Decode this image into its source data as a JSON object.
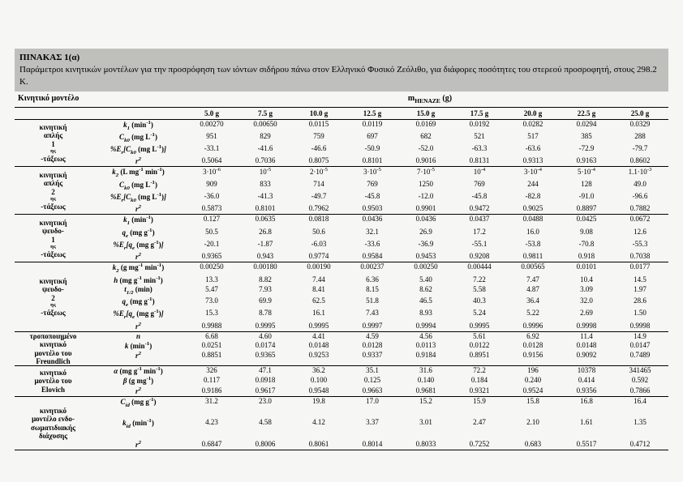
{
  "titleBox": {
    "heading": "ΠΙΝΑΚΑΣ 1(α)",
    "caption": "Παράμετροι κινητικών μοντέλων για την προσρόφηση των ιόντων σιδήρου πάνω στον Ελληνικό Φυσικό Ζεόλιθο, για διάφορες ποσότητες του στερεού προσροφητή, στους 298.2 K."
  },
  "header": {
    "leftLabel": "Κινητικό μοντέλο",
    "rightLabelHtml": "m<sub>HENAZE</sub> (g)",
    "masses": [
      "5.0 g",
      "7.5 g",
      "10.0 g",
      "12.5 g",
      "15.0 g",
      "17.5 g",
      "20.0 g",
      "22.5 g",
      "25.0 g"
    ]
  },
  "groups": [
    {
      "labelHtml": "κινητική<br>απλής<br>1<sup>ης</sup>-τάξεως",
      "rows": [
        {
          "paramHtml": "k<sub>1</sub> <span class='upright'>(min<sup>-1</sup>)</span>",
          "vals": [
            "0.00270",
            "0.00650",
            "0.0115",
            "0.0119",
            "0.0169",
            "0.0192",
            "0.0282",
            "0.0294",
            "0.0329"
          ]
        },
        {
          "paramHtml": "C<sub>k0</sub> <span class='upright'>(mg L<sup>-1</sup>)</span>",
          "vals": [
            "951",
            "829",
            "759",
            "697",
            "682",
            "521",
            "517",
            "385",
            "288"
          ]
        },
        {
          "paramHtml": "%E<sub>r</sub>[C<sub>k0</sub> <span class='upright'>(mg L<sup>-1</sup>)</span>]",
          "vals": [
            "-33.1",
            "-41.6",
            "-46.6",
            "-50.9",
            "-52.0",
            "-63.3",
            "-63.6",
            "-72.9",
            "-79.7"
          ]
        },
        {
          "paramHtml": "r<sup>2</sup>",
          "vals": [
            "0.5064",
            "0.7036",
            "0.8075",
            "0.8101",
            "0.9016",
            "0.8131",
            "0.9313",
            "0.9163",
            "0.8602"
          ]
        }
      ]
    },
    {
      "labelHtml": "κινητική<br>απλής<br>2<sup>ης</sup>-τάξεως",
      "rows": [
        {
          "paramHtml": "k<sub>2</sub> <span class='upright'>(L mg<sup>-1</sup> min<sup>-1</sup>)</span>",
          "vals": [
            "3·10<sup>-6</sup>",
            "10<sup>-5</sup>",
            "2·10<sup>-5</sup>",
            "3·10<sup>-5</sup>",
            "7·10<sup>-5</sup>",
            "10<sup>-4</sup>",
            "3·10<sup>-4</sup>",
            "5·10<sup>-4</sup>",
            "1.1·10<sup>-3</sup>"
          ]
        },
        {
          "paramHtml": "C<sub>k0</sub> <span class='upright'>(mg L<sup>-1</sup>)</span>",
          "vals": [
            "909",
            "833",
            "714",
            "769",
            "1250",
            "769",
            "244",
            "128",
            "49.0"
          ]
        },
        {
          "paramHtml": "%E<sub>r</sub>[C<sub>k0</sub> <span class='upright'>(mg L<sup>-1</sup>)</span>]",
          "vals": [
            "-36.0",
            "-41.3",
            "-49.7",
            "-45.8",
            "-12.0",
            "-45.8",
            "-82.8",
            "-91.0",
            "-96.6"
          ]
        },
        {
          "paramHtml": "r<sup>2</sup>",
          "vals": [
            "0.5873",
            "0.8101",
            "0.7962",
            "0.9503",
            "0.9901",
            "0.9472",
            "0.9025",
            "0.8897",
            "0.7882"
          ]
        }
      ]
    },
    {
      "labelHtml": "κινητική<br>ψευδο-<br>1<sup>ης</sup>-τάξεως",
      "rows": [
        {
          "paramHtml": "k<sub>1</sub> <span class='upright'>(min<sup>-1</sup>)</span>",
          "vals": [
            "0.127",
            "0.0635",
            "0.0818",
            "0.0436",
            "0.0436",
            "0.0437",
            "0.0488",
            "0.0425",
            "0.0672"
          ]
        },
        {
          "paramHtml": "q<sub>e</sub> <span class='upright'>(mg g<sup>-1</sup>)</span>",
          "vals": [
            "50.5",
            "26.8",
            "50.6",
            "32.1",
            "26.9",
            "17.2",
            "16.0",
            "9.08",
            "12.6"
          ]
        },
        {
          "paramHtml": "%E<sub>r</sub>[q<sub>e</sub> <span class='upright'>(mg g<sup>-1</sup>)</span>]",
          "vals": [
            "-20.1",
            "-1.87",
            "-6.03",
            "-33.6",
            "-36.9",
            "-55.1",
            "-53.8",
            "-70.8",
            "-55.3"
          ]
        },
        {
          "paramHtml": "r<sup>2</sup>",
          "vals": [
            "0.9365",
            "0.943",
            "0.9774",
            "0.9584",
            "0.9453",
            "0.9208",
            "0.9811",
            "0.918",
            "0.7038"
          ]
        }
      ]
    },
    {
      "labelHtml": "κινητική<br>ψευδο-<br>2<sup>ης</sup>-τάξεως",
      "rows": [
        {
          "paramHtml": "k<sub>2</sub> <span class='upright'>(g mg<sup>-1</sup> min<sup>-1</sup>)</span>",
          "vals": [
            "0.00250",
            "0.00180",
            "0.00190",
            "0.00237",
            "0.00250",
            "0.00444",
            "0.00565",
            "0.0101",
            "0.0177"
          ]
        },
        {
          "paramHtml": "h <span class='upright'>(mg g<sup>-1</sup> min<sup>-1</sup>)</span>",
          "vals": [
            "13.3",
            "8.82",
            "7.44",
            "6.36",
            "5.40",
            "7.22",
            "7.47",
            "10.4",
            "14.5"
          ]
        },
        {
          "paramHtml": "t<sub>1/2</sub> <span class='upright'>(min)</span>",
          "vals": [
            "5.47",
            "7.93",
            "8.41",
            "8.15",
            "8.62",
            "5.58",
            "4.87",
            "3.09",
            "1.97"
          ]
        },
        {
          "paramHtml": "q<sub>e</sub> <span class='upright'>(mg g<sup>-1</sup>)</span>",
          "vals": [
            "73.0",
            "69.9",
            "62.5",
            "51.8",
            "46.5",
            "40.3",
            "36.4",
            "32.0",
            "28.6"
          ]
        },
        {
          "paramHtml": "%E<sub>r</sub>[q<sub>e</sub> <span class='upright'>(mg g<sup>-1</sup>)</span>]",
          "vals": [
            "15.3",
            "8.78",
            "16.1",
            "7.43",
            "8.93",
            "5.24",
            "5.22",
            "2.69",
            "1.50"
          ]
        },
        {
          "paramHtml": "r<sup>2</sup>",
          "vals": [
            "0.9988",
            "0.9995",
            "0.9995",
            "0.9997",
            "0.9994",
            "0.9995",
            "0.9996",
            "0.9998",
            "0.9998"
          ]
        }
      ]
    },
    {
      "labelHtml": "τροποποιημένο<br>κινητικό<br>μοντέλο του<br>Freundlich",
      "rows": [
        {
          "paramHtml": "n",
          "vals": [
            "6.68",
            "4.60",
            "4.41",
            "4.59",
            "4.56",
            "5.61",
            "6.92",
            "11.4",
            "14.9"
          ]
        },
        {
          "paramHtml": "k <span class='upright'>(min<sup>-1</sup>)</span>",
          "vals": [
            "0.0251",
            "0.0174",
            "0.0148",
            "0.0128",
            "0.0113",
            "0.0122",
            "0.0128",
            "0.0148",
            "0.0147"
          ]
        },
        {
          "paramHtml": "r<sup>2</sup>",
          "vals": [
            "0.8851",
            "0.9365",
            "0.9253",
            "0.9337",
            "0.9184",
            "0.8951",
            "0.9156",
            "0.9092",
            "0.7489"
          ]
        }
      ]
    },
    {
      "labelHtml": "κινητικό<br>μοντέλο του<br>Elovich",
      "rows": [
        {
          "paramHtml": "α <span class='upright'>(mg g<sup>-1</sup> min<sup>-1</sup>)</span>",
          "vals": [
            "326",
            "47.1",
            "36.2",
            "35.1",
            "31.6",
            "72.2",
            "196",
            "10378",
            "341465"
          ]
        },
        {
          "paramHtml": "β <span class='upright'>(g mg<sup>-1</sup>)</span>",
          "vals": [
            "0.117",
            "0.0918",
            "0.100",
            "0.125",
            "0.140",
            "0.184",
            "0.240",
            "0.414",
            "0.592"
          ]
        },
        {
          "paramHtml": "r<sup>2</sup>",
          "vals": [
            "0.9186",
            "0.9617",
            "0.9548",
            "0.9663",
            "0.9681",
            "0.9321",
            "0.9524",
            "0.9356",
            "0.7866"
          ]
        }
      ]
    },
    {
      "labelHtml": "κινητικό<br>μοντέλο ενδο-<br>σωματιδιακής<br>διάχυσης",
      "rows": [
        {
          "paramHtml": "C<sub>id</sub> <span class='upright'>(mg g<sup>-1</sup>)</span>",
          "vals": [
            "31.2",
            "23.0",
            "19.8",
            "17.0",
            "15.2",
            "15.9",
            "15.8",
            "16.8",
            "16.4"
          ]
        },
        {
          "paramHtml": "&nbsp;",
          "vals": [
            "",
            "",
            "",
            "",
            "",
            "",
            "",
            "",
            ""
          ]
        },
        {
          "paramHtml": "k<sub>id</sub> <span class='upright'>(min<sup>-1</sup>)</span>",
          "vals": [
            "4.23",
            "4.58",
            "4.12",
            "3.37",
            "3.01",
            "2.47",
            "2.10",
            "1.61",
            "1.35"
          ]
        },
        {
          "paramHtml": "&nbsp;",
          "vals": [
            "",
            "",
            "",
            "",
            "",
            "",
            "",
            "",
            ""
          ]
        },
        {
          "paramHtml": "r<sup>2</sup>",
          "vals": [
            "0.6847",
            "0.8006",
            "0.8061",
            "0.8014",
            "0.8033",
            "0.7252",
            "0.683",
            "0.5517",
            "0.4712"
          ]
        }
      ]
    }
  ]
}
